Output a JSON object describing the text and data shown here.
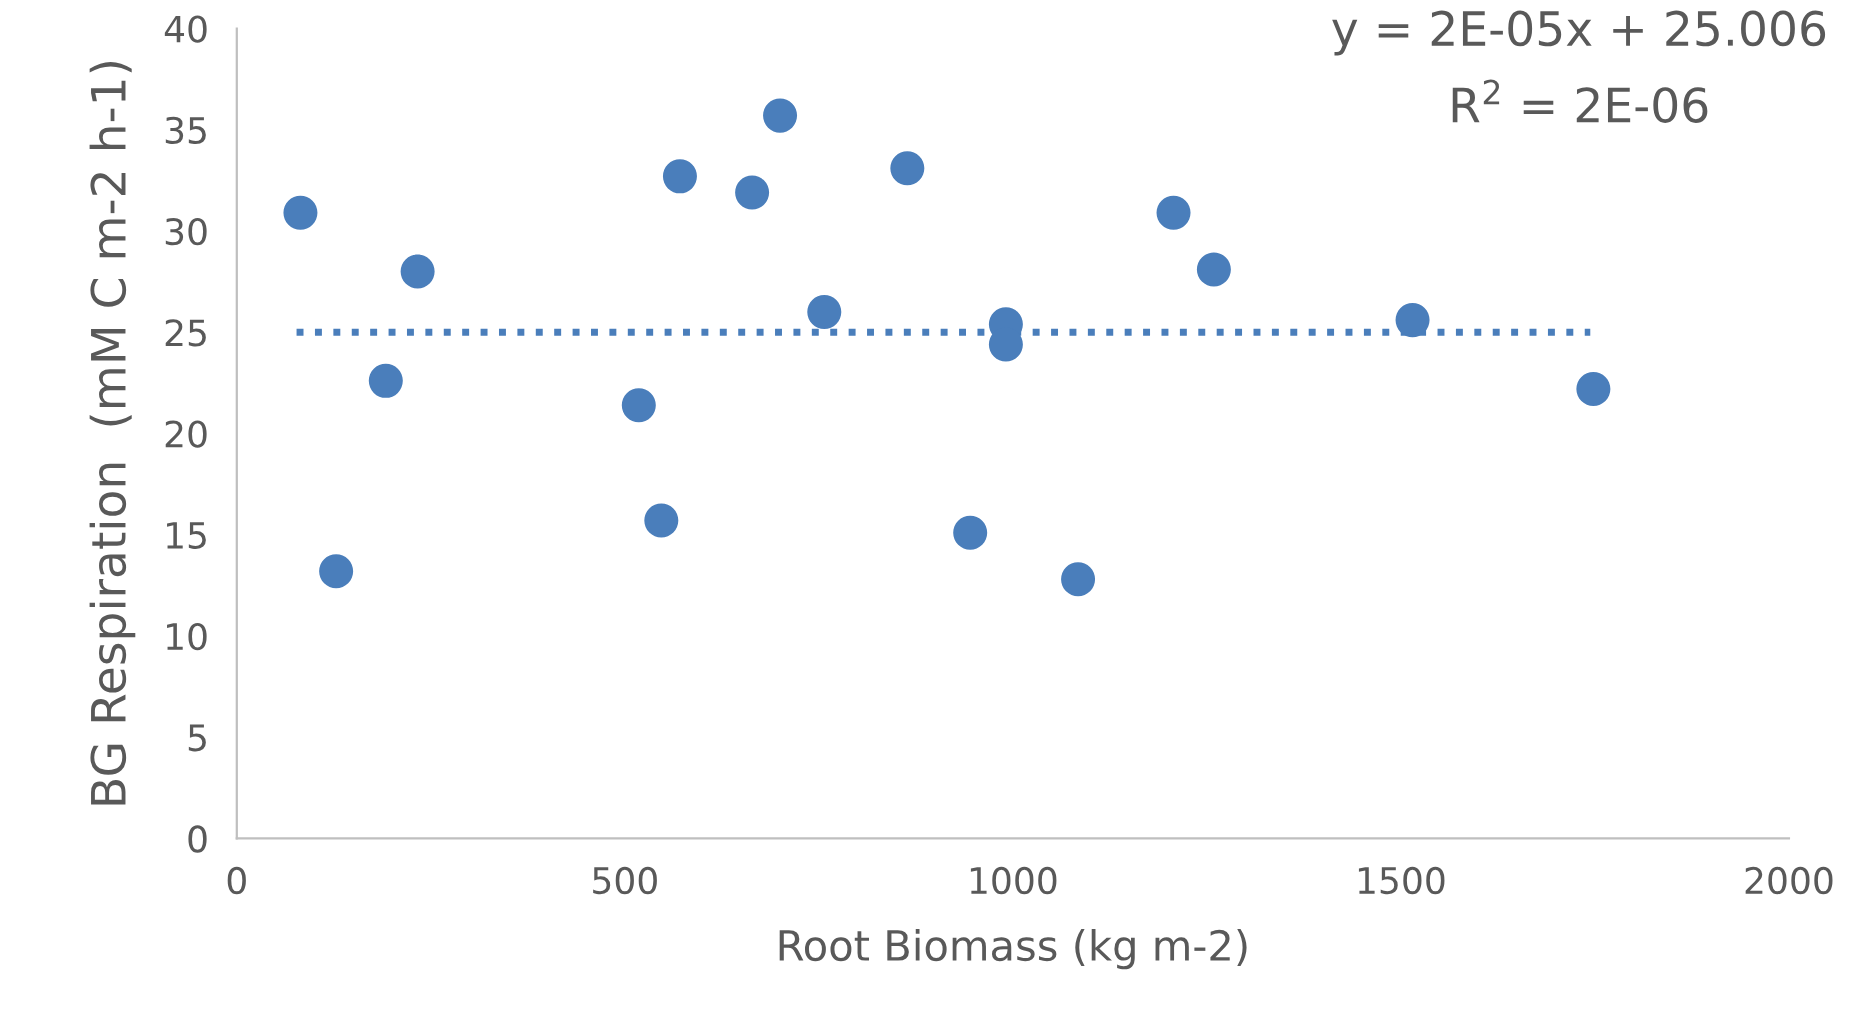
{
  "chart_data": {
    "type": "scatter",
    "xlabel": "Root Biomass (kg m-2)",
    "ylabel": "BG Respiration  (mM C m-2 h-1)",
    "xlim": [
      0,
      2000
    ],
    "xticks": [
      0,
      500,
      1000,
      1500,
      2000
    ],
    "ylim": [
      0,
      40
    ],
    "yticks": [
      0,
      5,
      10,
      15,
      20,
      25,
      30,
      35,
      40
    ],
    "grid": false,
    "legend": false,
    "marker": "circle",
    "series": [
      {
        "color": "#4a7ebb",
        "x": [
          82,
          128,
          192,
          233,
          518,
          547,
          571,
          664,
          700,
          757,
          864,
          945,
          991,
          991,
          1084,
          1207,
          1259,
          1515,
          1748
        ],
        "values": [
          30.9,
          13.2,
          22.6,
          28.0,
          21.4,
          15.7,
          32.7,
          31.9,
          35.7,
          26.0,
          33.1,
          15.1,
          25.4,
          24.4,
          12.8,
          30.9,
          28.1,
          25.6,
          22.2
        ]
      },
      {
        "type": "line",
        "color": "#4a7ebb",
        "line_style": "dotted",
        "marker": "none",
        "x": [
          77,
          1744
        ],
        "values": [
          25.0,
          25.0
        ]
      }
    ],
    "annotations": [
      "y = 2E-05x + 25.006",
      "R$^{2}$ = 2E-06"
    ]
  }
}
